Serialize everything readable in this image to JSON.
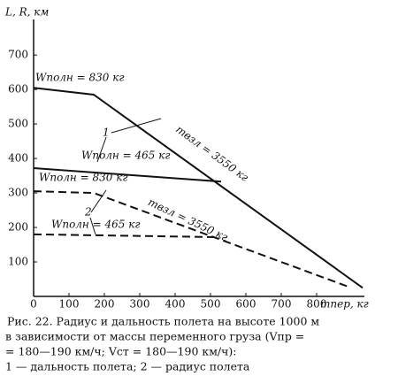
{
  "chart_data": {
    "type": "line",
    "y_label": "L, R, км",
    "x_label": "mпер, кг",
    "xlim": [
      0,
      930
    ],
    "ylim": [
      0,
      780
    ],
    "xticks": [
      0,
      100,
      200,
      300,
      400,
      500,
      600,
      700,
      800
    ],
    "yticks": [
      100,
      200,
      300,
      400,
      500,
      600,
      700
    ],
    "series": [
      {
        "color": "#111111",
        "style": "solid",
        "x": [
          0,
          170,
          930
        ],
        "values": [
          605,
          585,
          25
        ]
      },
      {
        "color": "#111111",
        "style": "solid",
        "x": [
          0,
          530
        ],
        "values": [
          372,
          333
        ]
      },
      {
        "color": "#111111",
        "style": "dashed",
        "x": [
          0,
          170,
          890
        ],
        "values": [
          305,
          300,
          28
        ]
      },
      {
        "color": "#111111",
        "style": "dashed",
        "x": [
          0,
          510
        ],
        "values": [
          180,
          172
        ]
      }
    ],
    "annotations": [
      "Wполн = 830 кг",
      "Wполн = 465 кг",
      "Wполн = 830 кг",
      "Wполн = 465 кг",
      "mвзл = 3550 кг",
      "mвзл = 3550 кг",
      "1",
      "2"
    ],
    "caption": [
      "Рис. 22. Радиус и дальность полета на высоте 1000 м",
      "в зависимости от массы переменного груза (Vпр =",
      "= 180—190 км/ч; Vст = 180—190 км/ч):",
      "1 — дальность полета;  2 — радиус полета"
    ]
  }
}
